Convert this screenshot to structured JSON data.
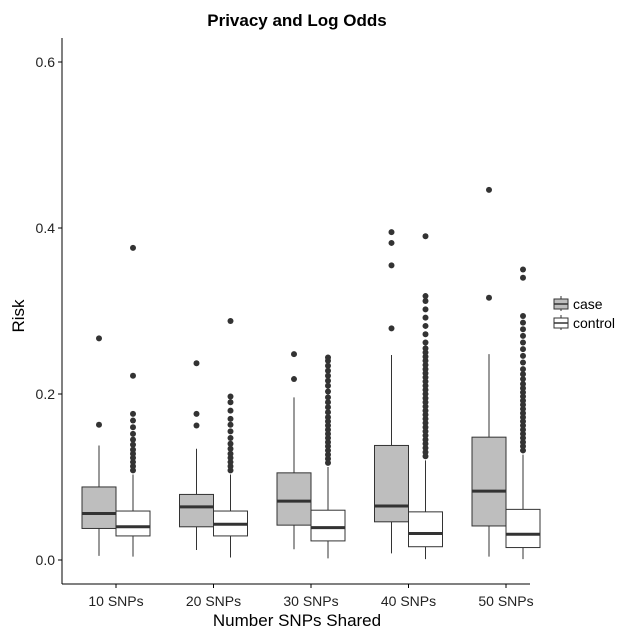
{
  "chart_data": {
    "type": "boxplot",
    "title": "Privacy and Log Odds",
    "xlabel": "Number SNPs Shared",
    "ylabel": "Risk",
    "ylim": [
      0.0,
      0.63
    ],
    "y_ticks": [
      "0.0",
      "0.2",
      "0.4",
      "0.6"
    ],
    "y_tick_values": [
      0.0,
      0.2,
      0.4,
      0.6
    ],
    "categories": [
      "10 SNPs",
      "20 SNPs",
      "30 SNPs",
      "40 SNPs",
      "50 SNPs"
    ],
    "grid": false,
    "legend_position": "right",
    "series": [
      {
        "name": "case",
        "color": "#bebebe",
        "boxes": [
          {
            "min": 0.005,
            "q1": 0.038,
            "median": 0.056,
            "q3": 0.088,
            "max": 0.138,
            "outliers": [
              0.163,
              0.267
            ]
          },
          {
            "min": 0.012,
            "q1": 0.04,
            "median": 0.064,
            "q3": 0.079,
            "max": 0.134,
            "outliers": [
              0.162,
              0.176,
              0.237
            ]
          },
          {
            "min": 0.013,
            "q1": 0.042,
            "median": 0.071,
            "q3": 0.105,
            "max": 0.196,
            "outliers": [
              0.218,
              0.248
            ]
          },
          {
            "min": 0.008,
            "q1": 0.046,
            "median": 0.065,
            "q3": 0.138,
            "max": 0.247,
            "outliers": [
              0.279,
              0.355,
              0.382,
              0.395
            ]
          },
          {
            "min": 0.004,
            "q1": 0.041,
            "median": 0.083,
            "q3": 0.148,
            "max": 0.248,
            "outliers": [
              0.316,
              0.446
            ]
          }
        ]
      },
      {
        "name": "control",
        "color": "#ffffff",
        "boxes": [
          {
            "min": 0.004,
            "q1": 0.029,
            "median": 0.04,
            "q3": 0.059,
            "max": 0.103,
            "outliers": [
              0.108,
              0.113,
              0.118,
              0.123,
              0.128,
              0.133,
              0.139,
              0.145,
              0.152,
              0.16,
              0.168,
              0.176,
              0.222,
              0.376
            ]
          },
          {
            "min": 0.003,
            "q1": 0.029,
            "median": 0.043,
            "q3": 0.059,
            "max": 0.103,
            "outliers": [
              0.108,
              0.113,
              0.118,
              0.123,
              0.128,
              0.134,
              0.14,
              0.147,
              0.155,
              0.163,
              0.17,
              0.18,
              0.19,
              0.197,
              0.288
            ]
          },
          {
            "min": 0.002,
            "q1": 0.023,
            "median": 0.039,
            "q3": 0.06,
            "max": 0.112,
            "outliers": [
              0.117,
              0.122,
              0.127,
              0.132,
              0.137,
              0.142,
              0.147,
              0.152,
              0.157,
              0.162,
              0.167,
              0.172,
              0.178,
              0.184,
              0.19,
              0.196,
              0.203,
              0.21,
              0.216,
              0.222,
              0.228,
              0.234,
              0.24,
              0.244
            ]
          },
          {
            "min": 0.001,
            "q1": 0.016,
            "median": 0.032,
            "q3": 0.058,
            "max": 0.12,
            "outliers": [
              0.125,
              0.13,
              0.135,
              0.14,
              0.145,
              0.15,
              0.155,
              0.16,
              0.165,
              0.17,
              0.175,
              0.18,
              0.185,
              0.19,
              0.195,
              0.2,
              0.205,
              0.21,
              0.215,
              0.22,
              0.225,
              0.23,
              0.235,
              0.24,
              0.245,
              0.25,
              0.255,
              0.262,
              0.272,
              0.282,
              0.292,
              0.302,
              0.312,
              0.318,
              0.39
            ]
          },
          {
            "min": 0.001,
            "q1": 0.015,
            "median": 0.031,
            "q3": 0.061,
            "max": 0.127,
            "outliers": [
              0.132,
              0.137,
              0.142,
              0.147,
              0.152,
              0.157,
              0.162,
              0.167,
              0.172,
              0.177,
              0.182,
              0.187,
              0.192,
              0.197,
              0.202,
              0.207,
              0.212,
              0.218,
              0.224,
              0.23,
              0.238,
              0.246,
              0.254,
              0.262,
              0.27,
              0.278,
              0.286,
              0.294,
              0.34,
              0.35
            ]
          }
        ]
      }
    ],
    "legend": [
      "case",
      "control"
    ]
  }
}
